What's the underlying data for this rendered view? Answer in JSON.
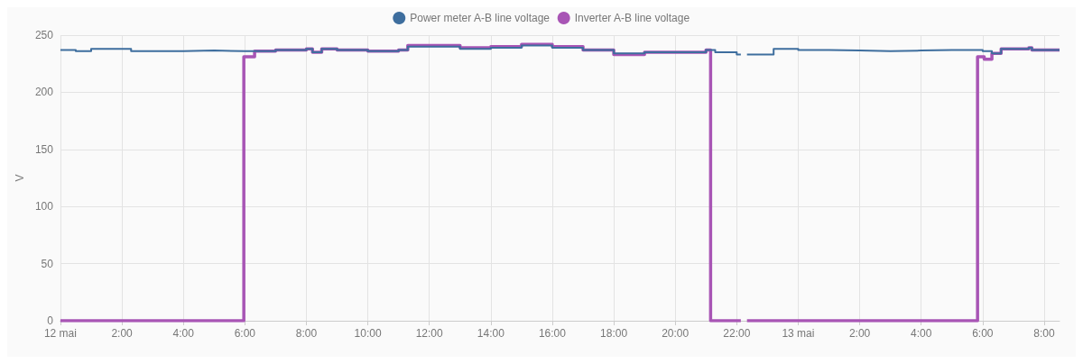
{
  "chart_data": {
    "type": "step",
    "ylabel": "V",
    "xlim": [
      "--05-12T00:00",
      "--05-13T08:30"
    ],
    "ylim": [
      0,
      250
    ],
    "xticks": [
      {
        "value": "--05-12T00:00",
        "label": "12 mai"
      },
      {
        "value": "--05-12T02:00",
        "label": "2:00"
      },
      {
        "value": "--05-12T04:00",
        "label": "4:00"
      },
      {
        "value": "--05-12T06:00",
        "label": "6:00"
      },
      {
        "value": "--05-12T08:00",
        "label": "8:00"
      },
      {
        "value": "--05-12T10:00",
        "label": "10:00"
      },
      {
        "value": "--05-12T12:00",
        "label": "12:00"
      },
      {
        "value": "--05-12T14:00",
        "label": "14:00"
      },
      {
        "value": "--05-12T16:00",
        "label": "16:00"
      },
      {
        "value": "--05-12T18:00",
        "label": "18:00"
      },
      {
        "value": "--05-12T20:00",
        "label": "20:00"
      },
      {
        "value": "--05-12T22:00",
        "label": "22:00"
      },
      {
        "value": "--05-13T00:00",
        "label": "13 mai"
      },
      {
        "value": "--05-13T02:00",
        "label": "2:00"
      },
      {
        "value": "--05-13T04:00",
        "label": "4:00"
      },
      {
        "value": "--05-13T06:00",
        "label": "6:00"
      },
      {
        "value": "--05-13T08:00",
        "label": "8:00"
      }
    ],
    "yticks": [
      0,
      50,
      100,
      150,
      200,
      250
    ],
    "grid": true,
    "legend": "top",
    "marker": "none",
    "line_style": "solid",
    "series": [
      {
        "name": "Power meter A-B line voltage",
        "color": "#3e6e9e",
        "x": [
          "--05-12T00:00",
          "--05-12T00:30",
          "--05-12T01:00",
          "--05-12T02:00",
          "--05-12T02:18",
          "--05-12T03:00",
          "--05-12T04:00",
          "--05-12T05:00",
          "--05-12T06:00",
          "--05-12T07:00",
          "--05-12T08:00",
          "--05-12T08:12",
          "--05-12T08:30",
          "--05-12T09:00",
          "--05-12T10:00",
          "--05-12T11:00",
          "--05-12T11:18",
          "--05-12T12:00",
          "--05-12T13:00",
          "--05-12T14:00",
          "--05-12T15:00",
          "--05-12T16:00",
          "--05-12T17:00",
          "--05-12T18:00",
          "--05-12T19:00",
          "--05-12T20:00",
          "--05-12T21:00",
          "--05-12T21:18",
          "--05-12T22:00",
          "--05-12T22:08",
          "--05-12T22:09",
          "--05-12T22:20",
          "--05-12T23:00",
          "--05-12T23:12",
          "--05-13T00:00",
          "--05-13T01:00",
          "--05-13T02:00",
          "--05-13T03:00",
          "--05-13T04:00",
          "--05-13T05:00",
          "--05-13T06:00",
          "--05-13T06:18",
          "--05-13T06:36",
          "--05-13T07:00",
          "--05-13T07:30",
          "--05-13T07:36",
          "--05-13T08:00",
          "--05-13T08:30"
        ],
        "values": [
          237,
          236,
          238,
          238,
          236,
          236,
          236.5,
          236,
          236,
          237,
          238,
          235,
          238,
          237,
          236,
          237,
          240,
          240,
          238,
          239,
          241,
          239,
          237,
          234,
          235,
          235,
          237,
          235,
          233,
          233,
          null,
          233,
          233,
          238,
          237,
          236.5,
          236,
          236.5,
          237,
          237,
          236,
          234,
          238,
          238,
          239,
          237,
          237,
          237
        ]
      },
      {
        "name": "Inverter A-B line voltage",
        "color": "#a855b5",
        "x": [
          "--05-12T00:00",
          "--05-12T05:58",
          "--05-12T06:19",
          "--05-12T07:00",
          "--05-12T08:00",
          "--05-12T08:12",
          "--05-12T08:30",
          "--05-12T09:00",
          "--05-12T10:00",
          "--05-12T11:00",
          "--05-12T11:18",
          "--05-12T12:00",
          "--05-12T13:00",
          "--05-12T14:00",
          "--05-12T15:00",
          "--05-12T16:00",
          "--05-12T17:00",
          "--05-12T18:00",
          "--05-12T19:00",
          "--05-12T20:00",
          "--05-12T21:00",
          "--05-12T21:09",
          "--05-12T22:08",
          "--05-12T22:09",
          "--05-12T22:20",
          "--05-13T05:50",
          "--05-13T06:03",
          "--05-13T06:18",
          "--05-13T06:36",
          "--05-13T07:00",
          "--05-13T07:30",
          "--05-13T07:36",
          "--05-13T08:00",
          "--05-13T08:30"
        ],
        "values": [
          0,
          231,
          236,
          237,
          238,
          235,
          238,
          237,
          236,
          237,
          241,
          241,
          239,
          240,
          242,
          240,
          237,
          233,
          235,
          235,
          237,
          0,
          0,
          null,
          0,
          231,
          229,
          234,
          238,
          238,
          239,
          237,
          237,
          237
        ]
      }
    ]
  }
}
